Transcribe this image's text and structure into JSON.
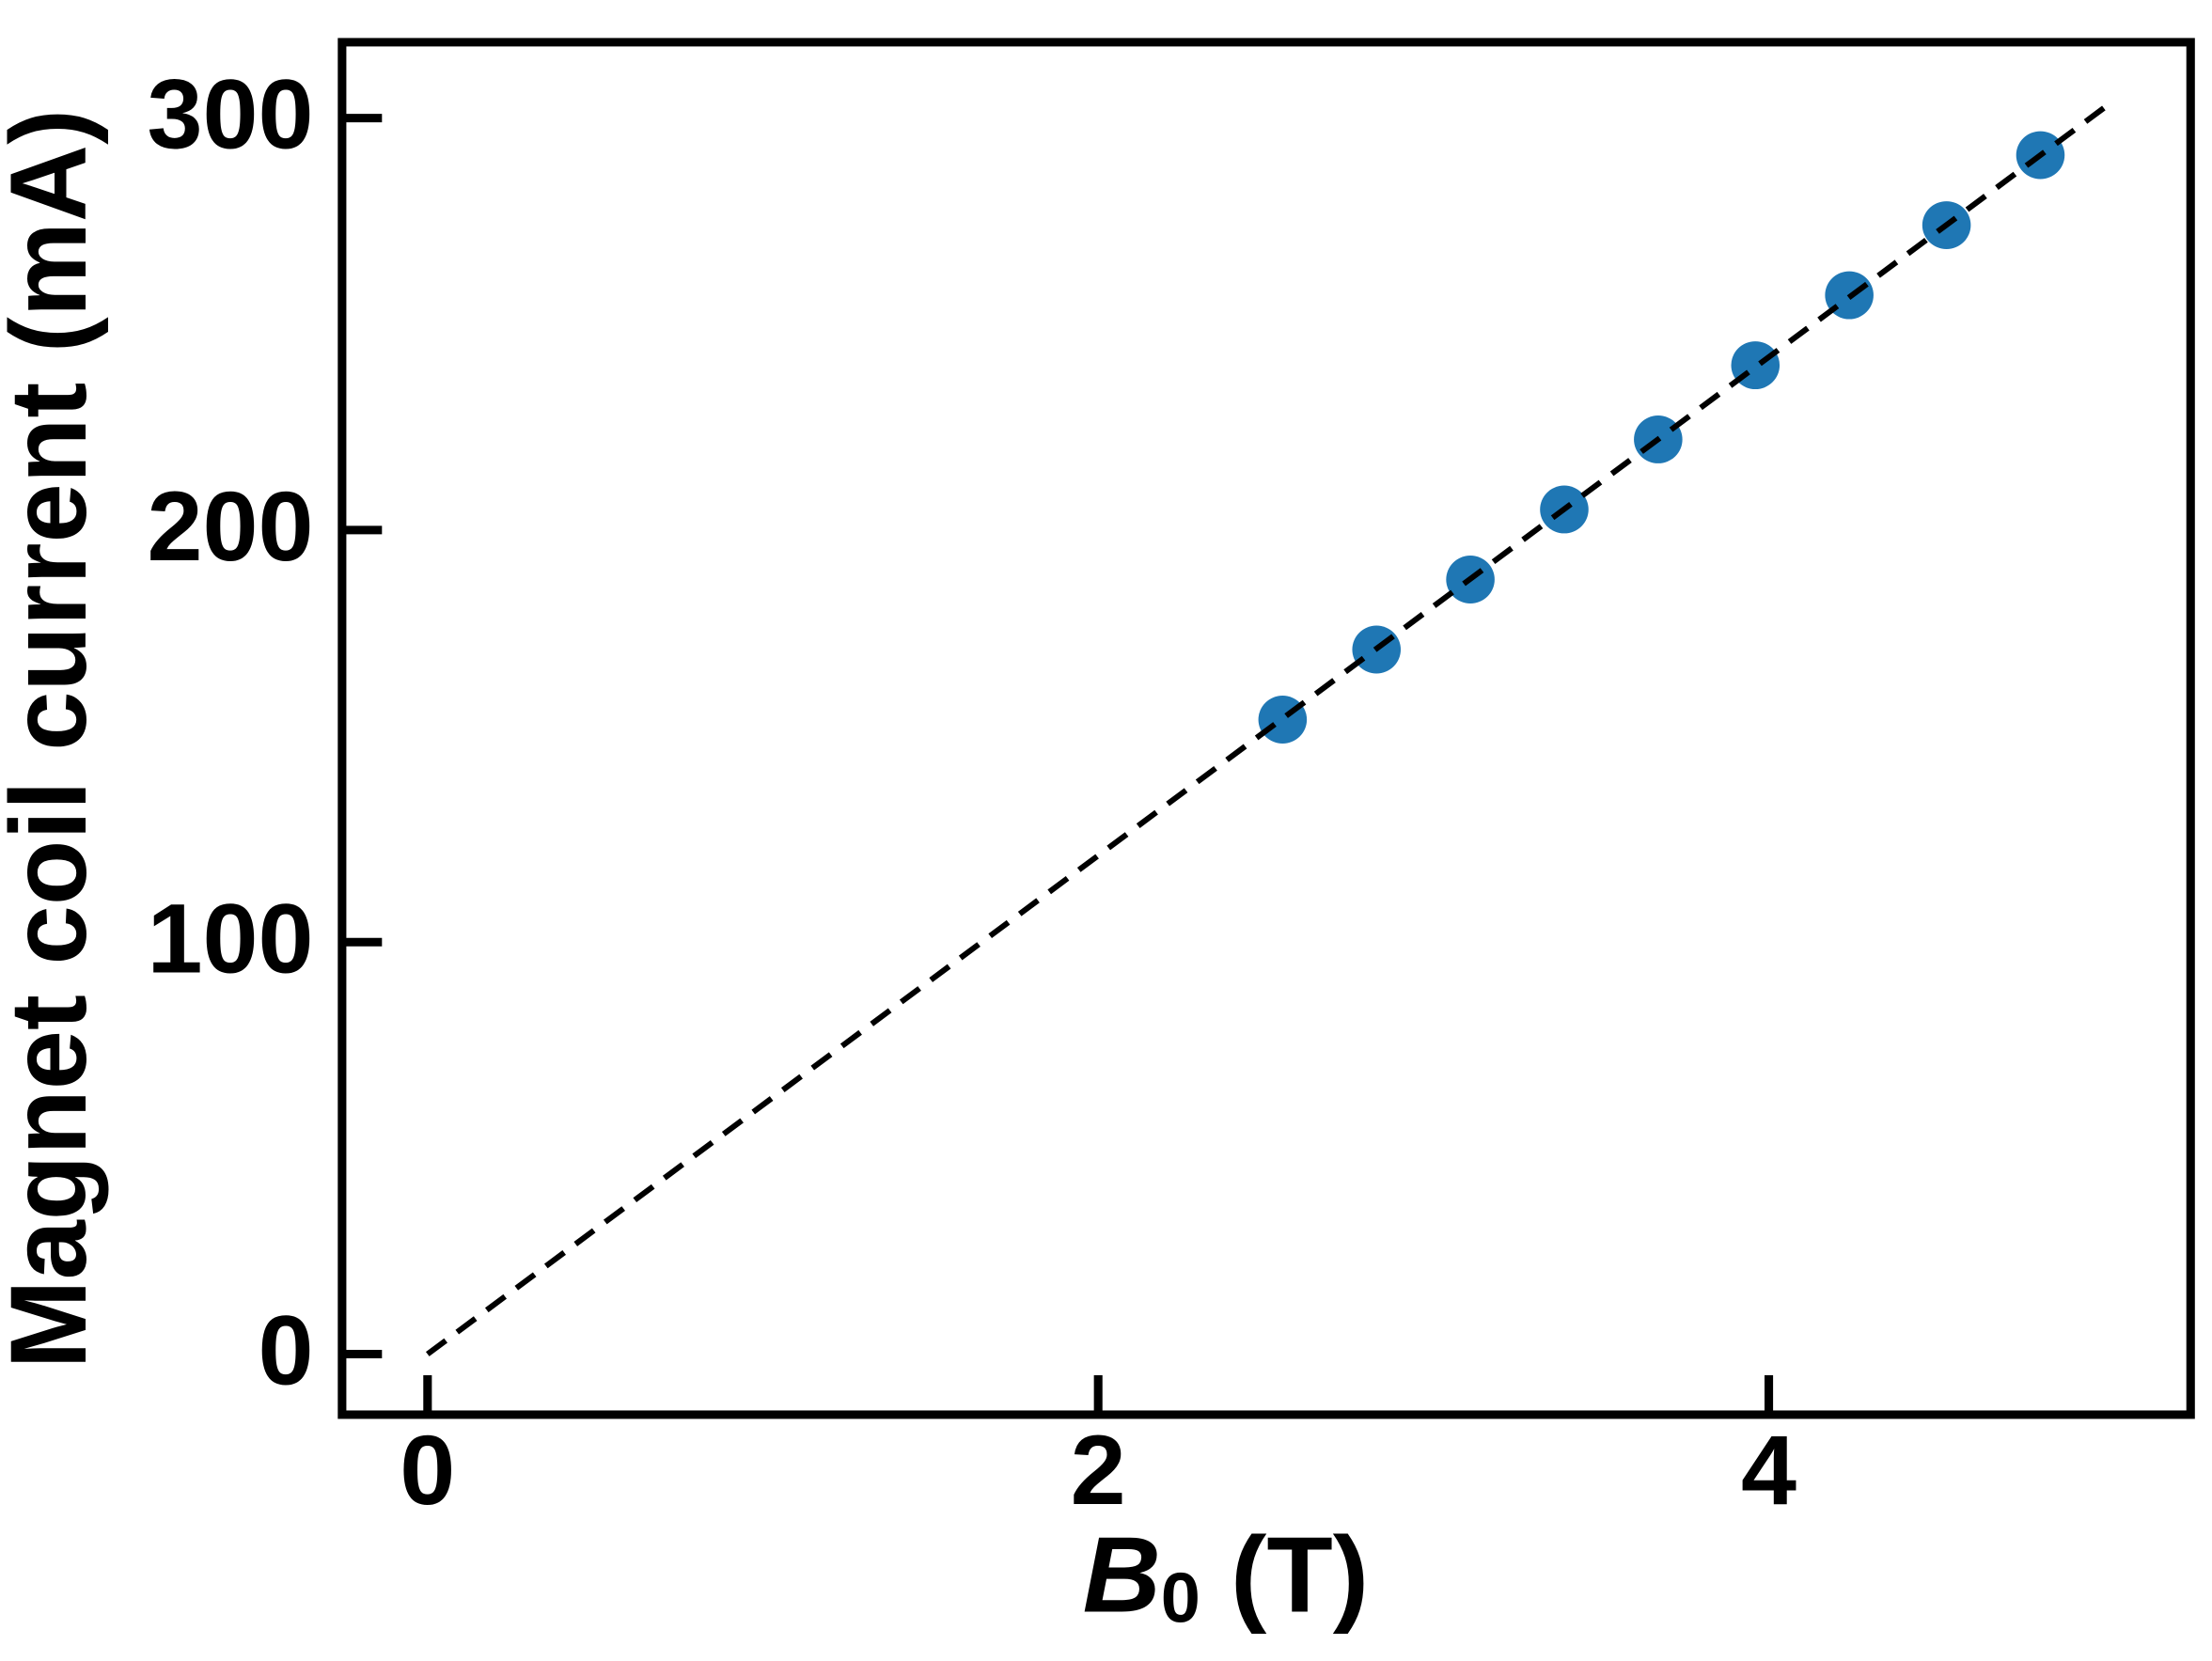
{
  "chart_data": {
    "type": "scatter",
    "ylabel": "Magnet coil current (mA)",
    "xlabel_parts": [
      "B",
      "0",
      " (T)"
    ],
    "xlim": [
      -0.255,
      5.258
    ],
    "ylim": [
      -14.7,
      318.4
    ],
    "xticks": [
      0,
      2,
      4
    ],
    "yticks": [
      0,
      100,
      200,
      300
    ],
    "series": [
      {
        "color": "#1f77b4",
        "x": [
          2.55,
          2.83,
          3.11,
          3.39,
          3.67,
          3.96,
          4.24,
          4.53,
          4.81
        ],
        "values": [
          154,
          171,
          188,
          205,
          222,
          240,
          257,
          274,
          291
        ]
      },
      {
        "color": "#000000",
        "style": "dashed",
        "x": [
          0,
          5.02
        ],
        "values": [
          0,
          303.7
        ]
      }
    ]
  }
}
